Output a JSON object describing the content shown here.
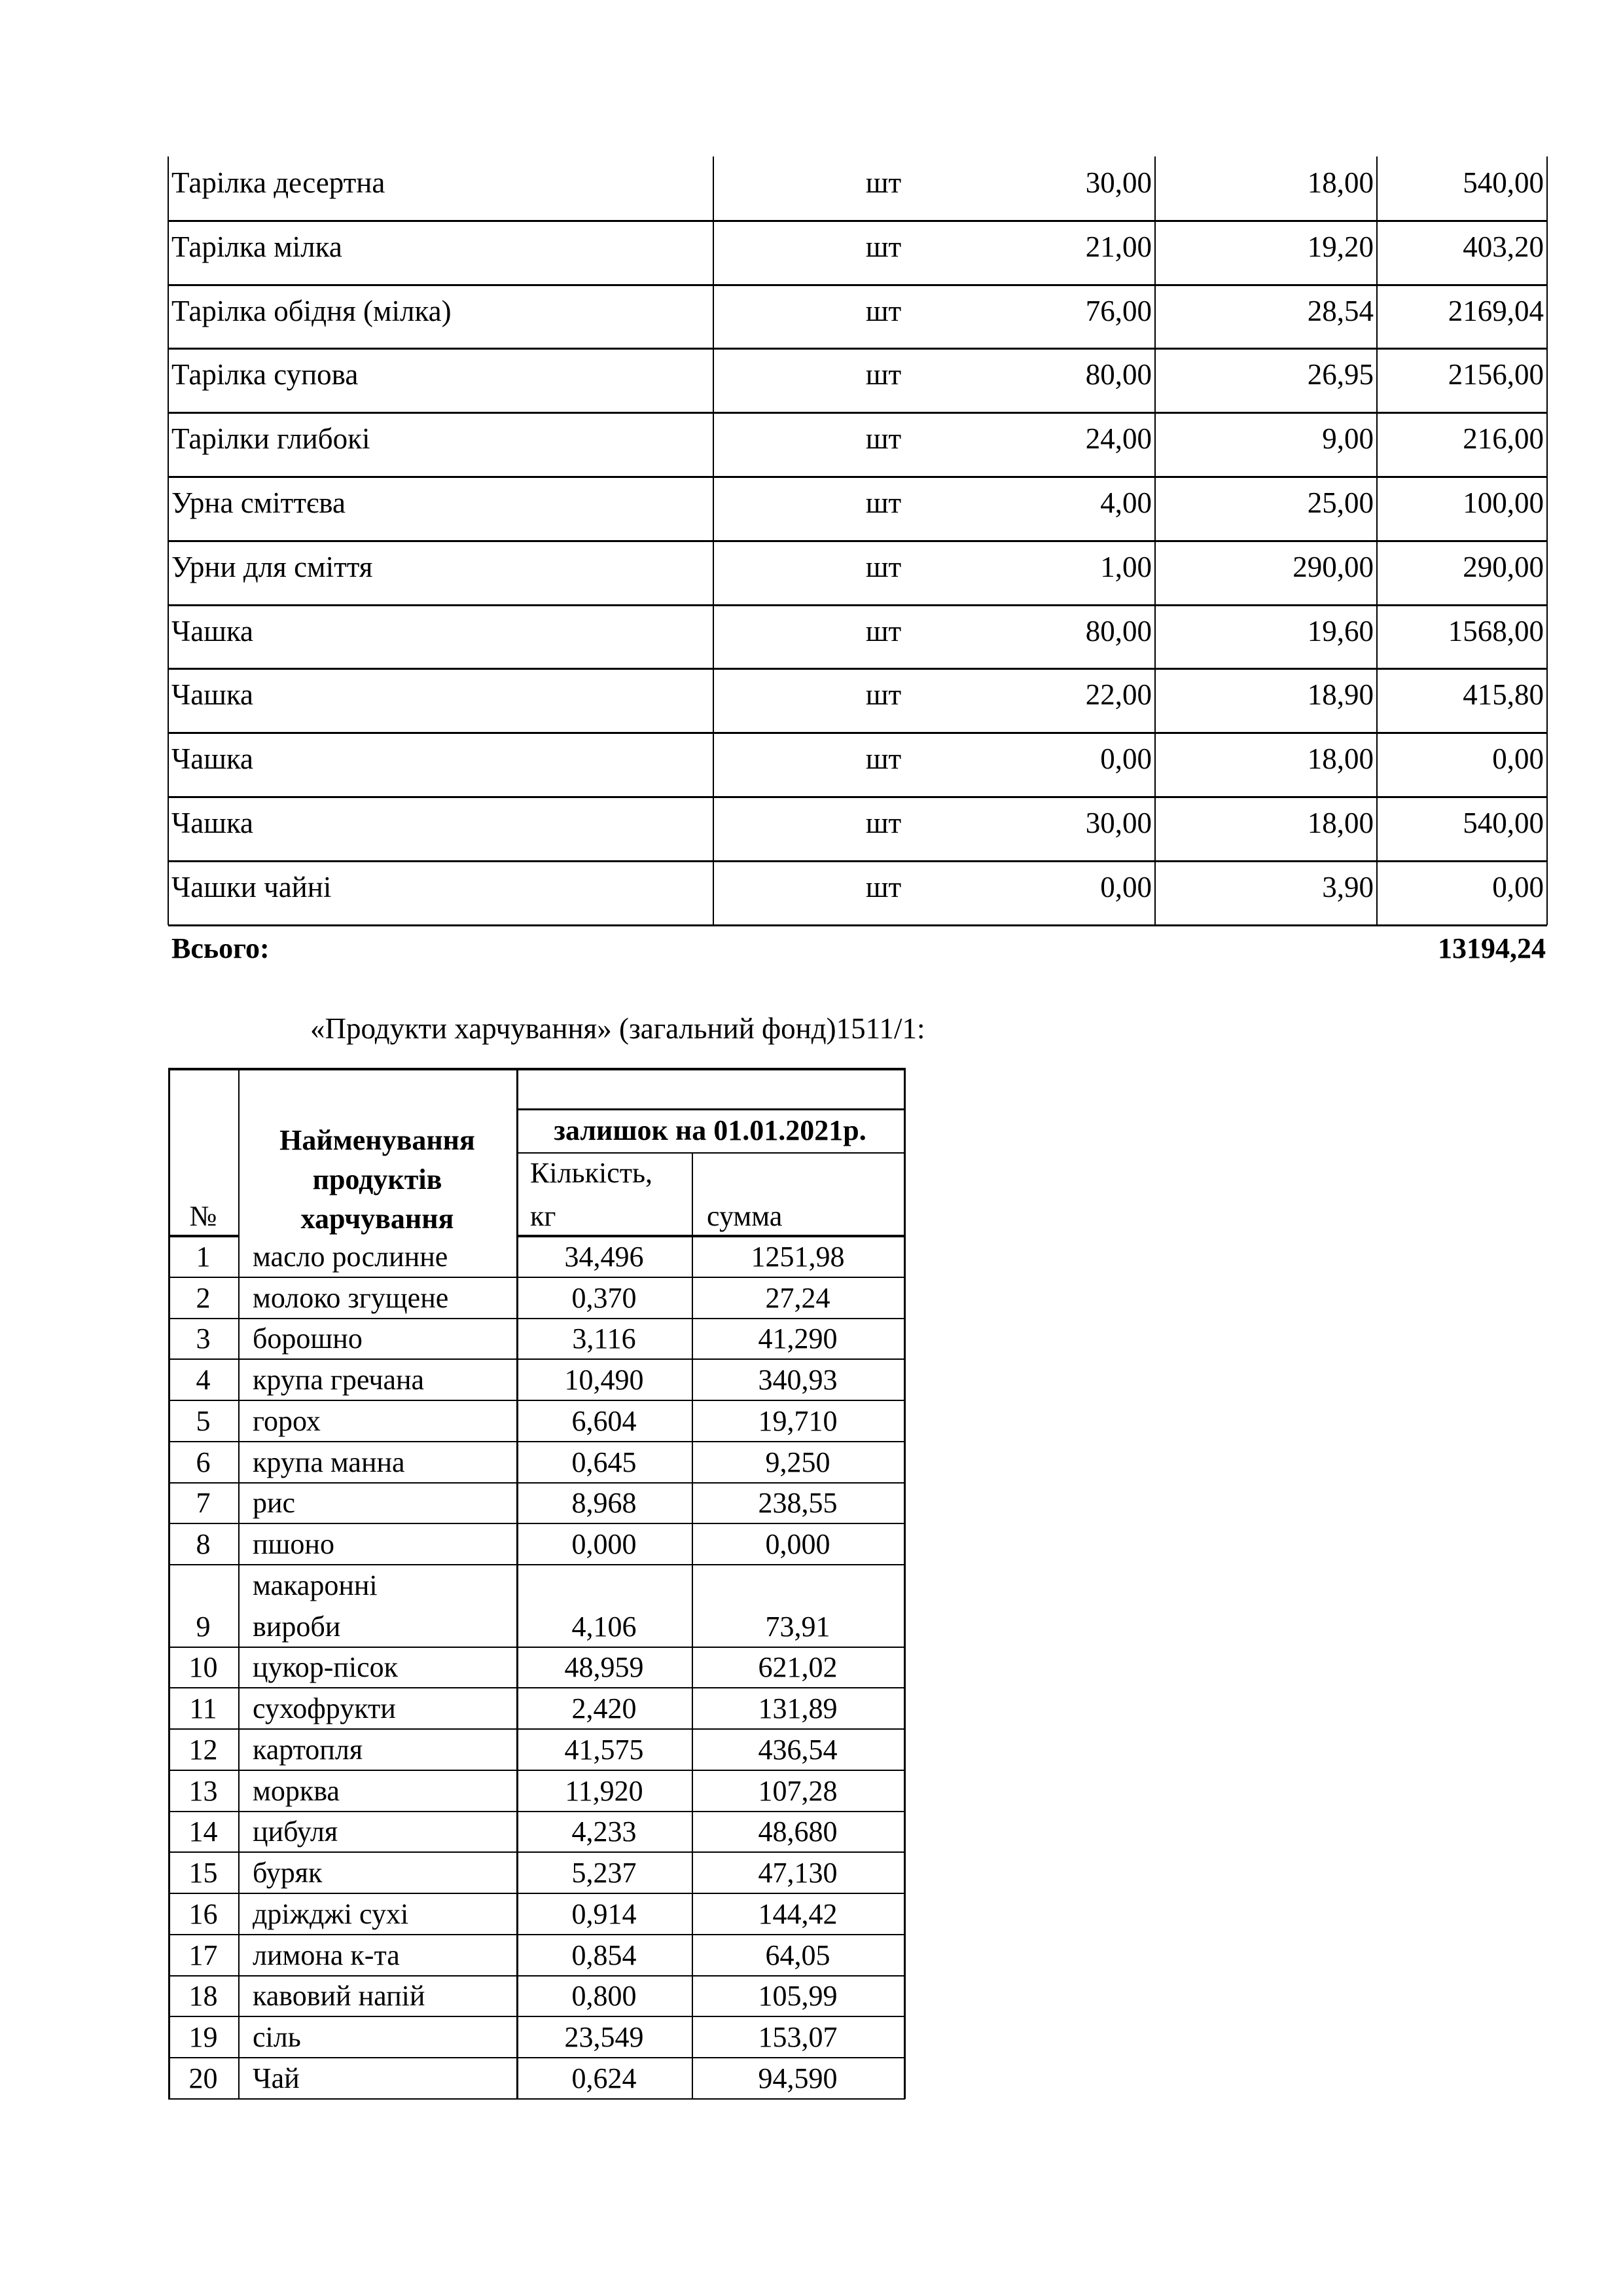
{
  "inventory_table": {
    "rows": [
      {
        "name": "Тарілка десертна",
        "unit": "шт",
        "qty": "30,00",
        "price": "18,00",
        "sum": "540,00"
      },
      {
        "name": "Тарілка мілка",
        "unit": "шт",
        "qty": "21,00",
        "price": "19,20",
        "sum": "403,20"
      },
      {
        "name": "Тарілка обідня (мілка)",
        "unit": "шт",
        "qty": "76,00",
        "price": "28,54",
        "sum": "2169,04"
      },
      {
        "name": "Тарілка супова",
        "unit": "шт",
        "qty": "80,00",
        "price": "26,95",
        "sum": "2156,00"
      },
      {
        "name": "Тарілки глибокі",
        "unit": "шт",
        "qty": "24,00",
        "price": "9,00",
        "sum": "216,00"
      },
      {
        "name": "Урна сміттєва",
        "unit": "шт",
        "qty": "4,00",
        "price": "25,00",
        "sum": "100,00"
      },
      {
        "name": "Урни для сміття",
        "unit": "шт",
        "qty": "1,00",
        "price": "290,00",
        "sum": "290,00"
      },
      {
        "name": "Чашка",
        "unit": "шт",
        "qty": "80,00",
        "price": "19,60",
        "sum": "1568,00"
      },
      {
        "name": "Чашка",
        "unit": "шт",
        "qty": "22,00",
        "price": "18,90",
        "sum": "415,80"
      },
      {
        "name": "Чашка",
        "unit": "шт",
        "qty": "0,00",
        "price": "18,00",
        "sum": "0,00"
      },
      {
        "name": "Чашка",
        "unit": "шт",
        "qty": "30,00",
        "price": "18,00",
        "sum": "540,00"
      },
      {
        "name": "Чашки чайні",
        "unit": "шт",
        "qty": "0,00",
        "price": "3,90",
        "sum": "0,00"
      }
    ],
    "total_label": "Всього:",
    "total_value": "13194,24"
  },
  "food_section_title": "«Продукти харчування» (загальний фонд)1511/1:",
  "food_table": {
    "headers": {
      "number": "№",
      "name": "Найменування продуктів харчування",
      "balance": "залишок на 01.01.2021р.",
      "qty_line1": "Кількість,",
      "qty_line2": "кг",
      "sum": "сумма"
    },
    "rows": [
      {
        "n": "1",
        "name": "масло рослинне",
        "qty": "34,496",
        "sum": "1251,98"
      },
      {
        "n": "2",
        "name": "молоко згущене",
        "qty": "0,370",
        "sum": "27,24"
      },
      {
        "n": "3",
        "name": "борошно",
        "qty": "3,116",
        "sum": "41,290"
      },
      {
        "n": "4",
        "name": "крупа гречана",
        "qty": "10,490",
        "sum": "340,93"
      },
      {
        "n": "5",
        "name": "горох",
        "qty": "6,604",
        "sum": "19,710"
      },
      {
        "n": "6",
        "name": "крупа манна",
        "qty": "0,645",
        "sum": "9,250"
      },
      {
        "n": "7",
        "name": "рис",
        "qty": "8,968",
        "sum": "238,55"
      },
      {
        "n": "8",
        "name": "пшоно",
        "qty": "0,000",
        "sum": "0,000"
      },
      {
        "n": "9",
        "name": "макаронні",
        "name2": "вироби",
        "qty": "4,106",
        "sum": "73,91"
      },
      {
        "n": "10",
        "name": "цукор-пісок",
        "qty": "48,959",
        "sum": "621,02"
      },
      {
        "n": "11",
        "name": "сухофрукти",
        "qty": "2,420",
        "sum": "131,89"
      },
      {
        "n": "12",
        "name": "картопля",
        "qty": "41,575",
        "sum": "436,54"
      },
      {
        "n": "13",
        "name": "морква",
        "qty": "11,920",
        "sum": "107,28"
      },
      {
        "n": "14",
        "name": "цибуля",
        "qty": "4,233",
        "sum": "48,680"
      },
      {
        "n": "15",
        "name": "буряк",
        "qty": "5,237",
        "sum": "47,130"
      },
      {
        "n": "16",
        "name": "дріжджі сухі",
        "qty": "0,914",
        "sum": "144,42"
      },
      {
        "n": "17",
        "name": "лимона к-та",
        "qty": "0,854",
        "sum": "64,05"
      },
      {
        "n": "18",
        "name": "кавовий напій",
        "qty": "0,800",
        "sum": "105,99"
      },
      {
        "n": "19",
        "name": "сіль",
        "qty": "23,549",
        "sum": "153,07"
      },
      {
        "n": "20",
        "name": "Чай",
        "qty": "0,624",
        "sum": "94,590"
      }
    ]
  }
}
